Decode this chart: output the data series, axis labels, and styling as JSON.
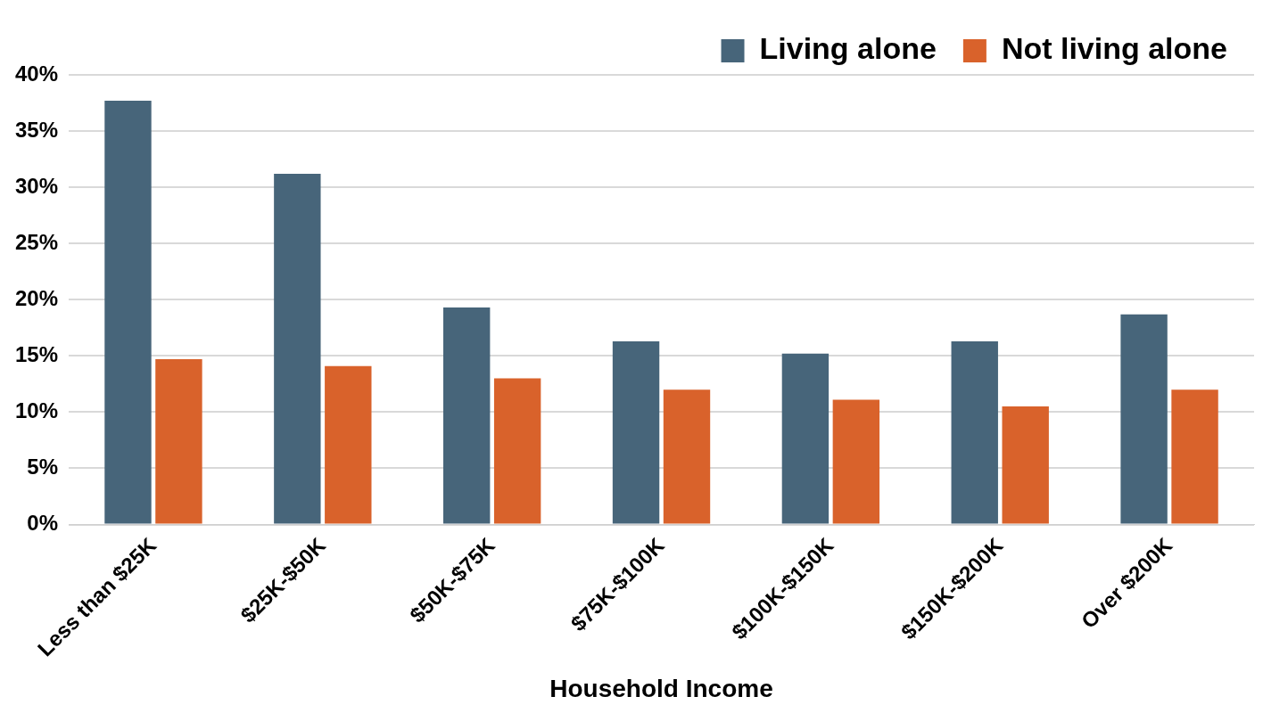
{
  "chart_data": {
    "type": "bar",
    "xlabel": "Household Income",
    "categories": [
      "Less than $25K",
      "$25K-$50K",
      "$50K-$75K",
      "$75K-$100K",
      "$100K-$150K",
      "$150K-$200K",
      "Over $200K"
    ],
    "series": [
      {
        "name": "Living alone",
        "color": "#47657a",
        "values": [
          37.7,
          31.2,
          19.3,
          16.3,
          15.2,
          16.3,
          18.7
        ]
      },
      {
        "name": "Not living alone",
        "color": "#d9622b",
        "values": [
          14.7,
          14.1,
          13.0,
          12.0,
          11.1,
          10.5,
          12.0
        ]
      }
    ],
    "ylim": [
      0,
      40
    ],
    "yticks": [
      {
        "value": 0,
        "label": "0%"
      },
      {
        "value": 5,
        "label": "5%"
      },
      {
        "value": 10,
        "label": "10%"
      },
      {
        "value": 15,
        "label": "15%"
      },
      {
        "value": 20,
        "label": "20%"
      },
      {
        "value": 25,
        "label": "25%"
      },
      {
        "value": 30,
        "label": "30%"
      },
      {
        "value": 35,
        "label": "35%"
      },
      {
        "value": 40,
        "label": "40%"
      }
    ],
    "grid": "y",
    "legend": "top right"
  }
}
